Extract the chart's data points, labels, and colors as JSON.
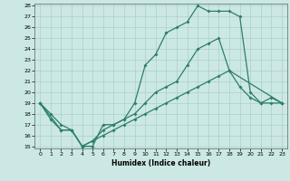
{
  "title": "",
  "xlabel": "Humidex (Indice chaleur)",
  "bg_color": "#cce8e4",
  "line_color": "#2d7d6e",
  "grid_color": "#aacfca",
  "ylim": [
    15,
    28
  ],
  "xlim": [
    -0.5,
    23.5
  ],
  "yticks": [
    15,
    16,
    17,
    18,
    19,
    20,
    21,
    22,
    23,
    24,
    25,
    26,
    27,
    28
  ],
  "xticks": [
    0,
    1,
    2,
    3,
    4,
    5,
    6,
    7,
    8,
    9,
    10,
    11,
    12,
    13,
    14,
    15,
    16,
    17,
    18,
    19,
    20,
    21,
    22,
    23
  ],
  "line1_x": [
    0,
    1,
    2,
    3,
    4,
    5,
    6,
    7,
    8,
    9,
    10,
    11,
    12,
    13,
    14,
    15,
    16,
    17,
    18,
    19,
    20,
    21,
    22,
    23
  ],
  "line1_y": [
    19,
    18,
    17,
    16.5,
    15,
    15,
    17,
    17,
    17.5,
    18,
    19,
    20,
    20.5,
    21,
    22.5,
    24,
    24.5,
    25,
    22,
    20.5,
    19.5,
    19,
    19,
    19
  ],
  "line2_x": [
    0,
    1,
    2,
    3,
    4,
    5,
    6,
    7,
    8,
    9,
    10,
    11,
    12,
    13,
    14,
    15,
    16,
    17,
    18,
    19,
    20,
    21,
    22,
    23
  ],
  "line2_y": [
    19,
    17.5,
    16.5,
    16.5,
    15,
    15.5,
    16.5,
    17,
    17.5,
    19,
    22.5,
    23.5,
    25.5,
    26,
    26.5,
    28,
    27.5,
    27.5,
    27.5,
    27,
    20,
    19,
    19.5,
    19
  ],
  "line3_x": [
    0,
    2,
    3,
    4,
    5,
    6,
    7,
    8,
    9,
    10,
    11,
    12,
    13,
    14,
    15,
    16,
    17,
    18,
    23
  ],
  "line3_y": [
    19,
    16.5,
    16.5,
    15,
    15.5,
    16,
    16.5,
    17,
    17.5,
    18,
    18.5,
    19,
    19.5,
    20,
    20.5,
    21,
    21.5,
    22,
    19
  ]
}
